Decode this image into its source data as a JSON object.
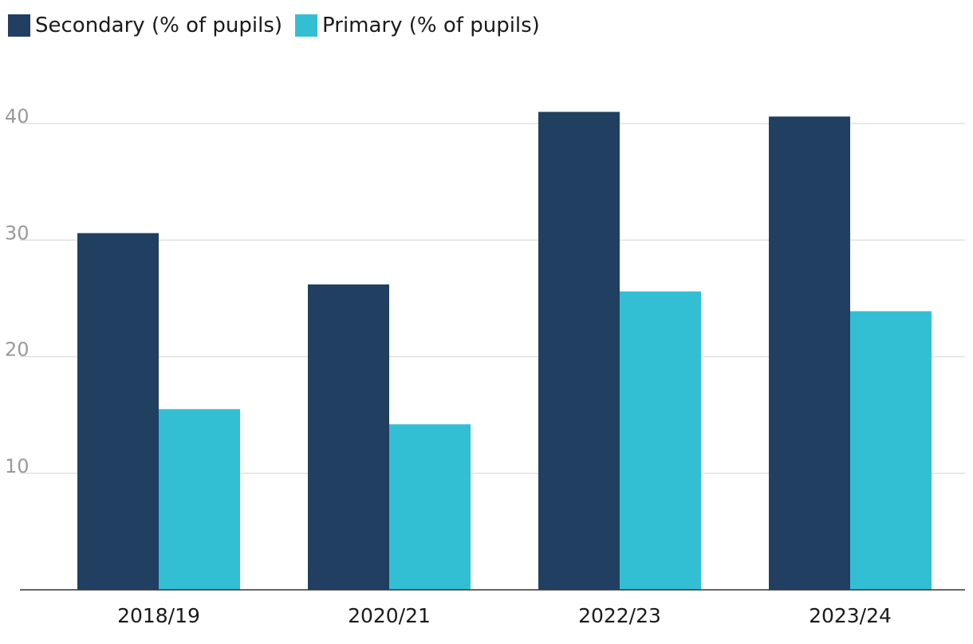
{
  "chart_data": {
    "type": "bar",
    "title": "",
    "xlabel": "",
    "ylabel": "",
    "categories": [
      "2018/19",
      "2020/21",
      "2022/23",
      "2023/24"
    ],
    "series": [
      {
        "name": "Secondary (% of pupils)",
        "values": [
          30.6,
          26.2,
          41.0,
          40.6
        ],
        "color": "#213f60"
      },
      {
        "name": "Primary (% of pupils)",
        "values": [
          15.5,
          14.2,
          25.6,
          23.9
        ],
        "color": "#33bfd3"
      }
    ],
    "yticks": [
      "10",
      "20",
      "30",
      "40"
    ],
    "ylim": [
      0,
      40
    ],
    "grid": true,
    "legend_position": "top-left"
  }
}
